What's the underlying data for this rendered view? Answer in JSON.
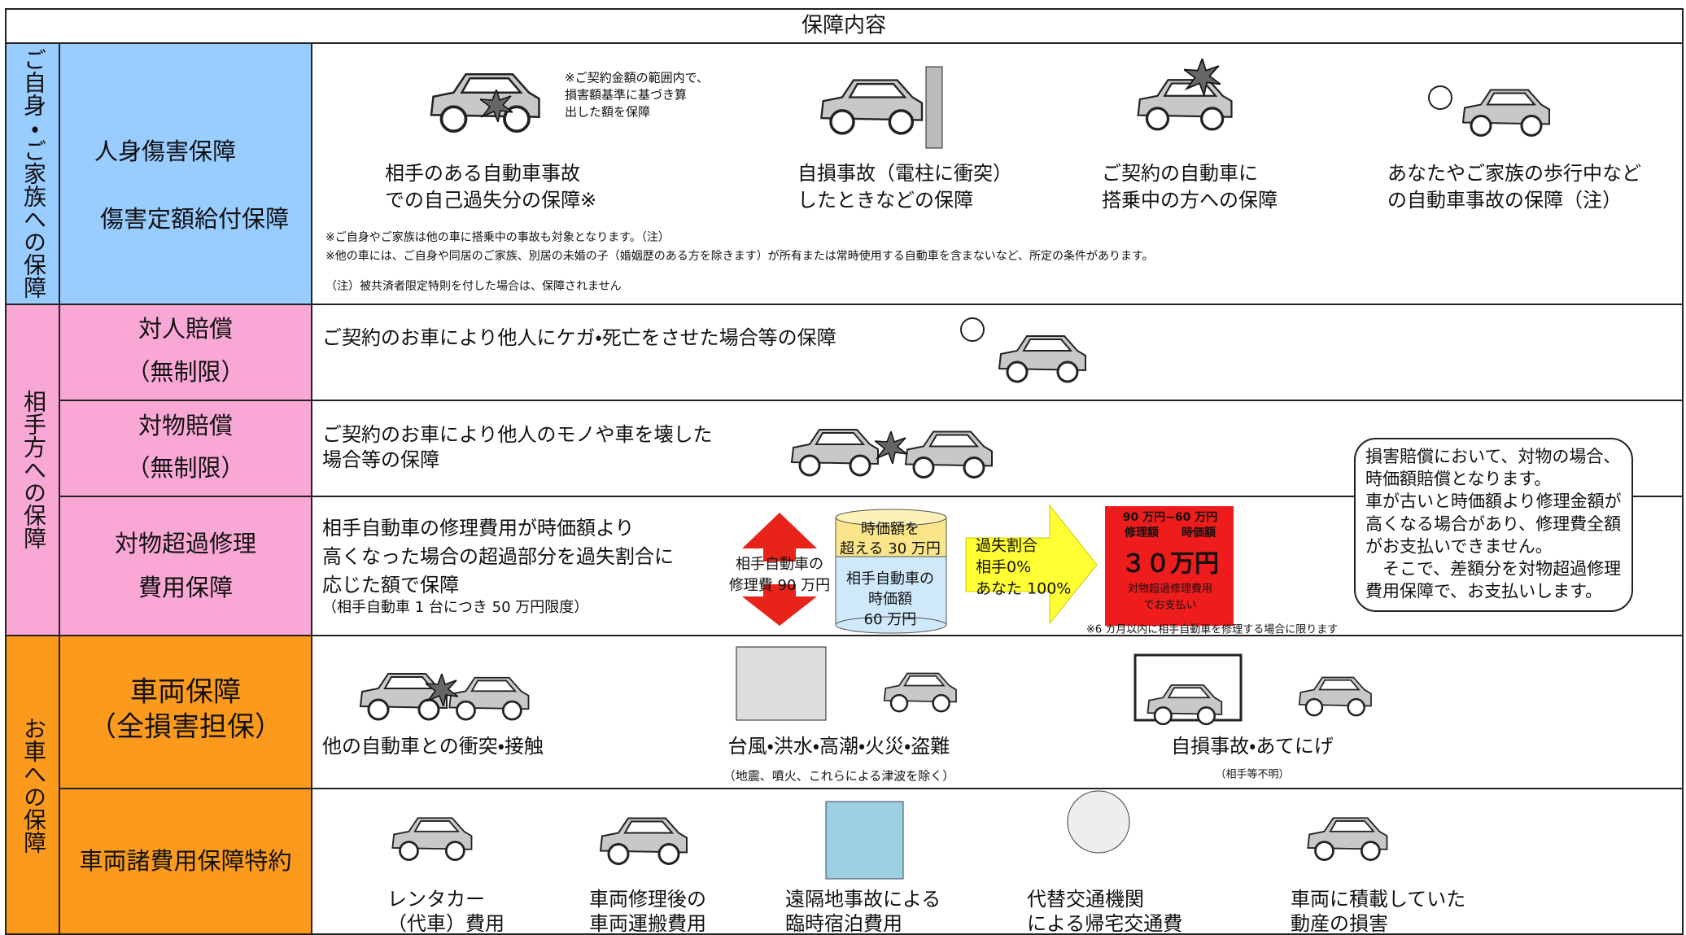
{
  "title": "保障内容",
  "groups": [
    "ご自身・ご家族への保障",
    "相手方への保障",
    "お車への保障"
  ],
  "personal_injury": {
    "name": [
      "人身傷害保障",
      "傷害定額給付保障"
    ],
    "cases": [
      [
        "相手のある自動車事故",
        "での自己過失分の保障※"
      ],
      [
        "自損事故（電柱に衝突）",
        "したときなどの保障"
      ],
      [
        "ご契約の自動車に",
        "搭乗中の方への保障"
      ],
      [
        "あなたやご家族の歩行中など",
        "の自動車事故の保障（注）"
      ]
    ],
    "amount_note": [
      "※ご契約金額の範囲内で、",
      "損害額基準に基づき算",
      "出した額を保障"
    ],
    "notes": [
      "※ご自身やご家族は他の車に搭乗中の事故も対象となります。（注）",
      "※他の車には、ご自身や同居のご家族、別居の未婚の子（婚姻歴のある方を除きます）が所有または常時使用する自動車を含まないなど、所定の条件があります。",
      "（注）被共済者限定特則を付した場合は、保障されません"
    ]
  },
  "bodily_liability": {
    "name": [
      "対人賠償",
      "（無制限）"
    ],
    "description": "ご契約のお車により他人にケガ・死亡をさせた場合等の保障"
  },
  "property_liability": {
    "name": [
      "対物賠償",
      "（無制限）"
    ],
    "description": [
      "ご契約のお車により他人のモノや車を壊した",
      "場合等の保障"
    ],
    "callout": [
      "損害賠償において、対物の場合、",
      "時価額賠償となります。",
      "車が古いと時価額より修理金額が",
      "高くなる場合があり、修理費全額",
      "がお支払いできません。",
      "　そこで、差額分を対物超過修理",
      "費用保障で、お支払いします。"
    ]
  },
  "excess_repair": {
    "name": [
      "対物超過修理",
      "費用保障"
    ],
    "description": [
      "相手自動車の修理費用が時価額より",
      "高くなった場合の超過部分を過失割合に",
      "応じた額で保障"
    ],
    "limit": "（相手自動車 1 台につき 50 万円限度）",
    "repair_cost": [
      "相手自動車の",
      "修理費 90 万円"
    ],
    "excess": [
      "時価額を",
      "超える 30 万円"
    ],
    "market_value": [
      "相手自動車の",
      "時価額",
      "60 万円"
    ],
    "fault_ratio": [
      "過失割合",
      "相手0%",
      "あなた 100%"
    ],
    "payment": {
      "formula": [
        "90 万円−60 万円",
        "修理額　　時価額"
      ],
      "amount": "３０万円",
      "caption": [
        "対物超過修理費用",
        "でお支払い"
      ]
    },
    "footnote": "※6 カ月以内に相手自動車を修理する場合に限ります"
  },
  "vehicle": {
    "name": [
      "車両保障",
      "（全損害担保）"
    ],
    "cases": [
      {
        "text": "他の自動車との衝突・接触"
      },
      {
        "text": "台風・洪水・高潮・火災・盗難",
        "note": "（地震、噴火、これらによる津波を除く）"
      },
      {
        "text": "自損事故・あてにげ",
        "note": "（相手等不明）"
      }
    ]
  },
  "vehicle_expenses": {
    "name": "車両諸費用保障特約",
    "cases": [
      [
        "レンタカー",
        "（代車）費用"
      ],
      [
        "車両修理後の",
        "車両運搬費用"
      ],
      [
        "遠隔地事故による",
        "臨時宿泊費用"
      ],
      [
        "代替交通機関",
        "による帰宅交通費"
      ],
      [
        "車両に積載していた",
        "動産の損害"
      ]
    ]
  }
}
